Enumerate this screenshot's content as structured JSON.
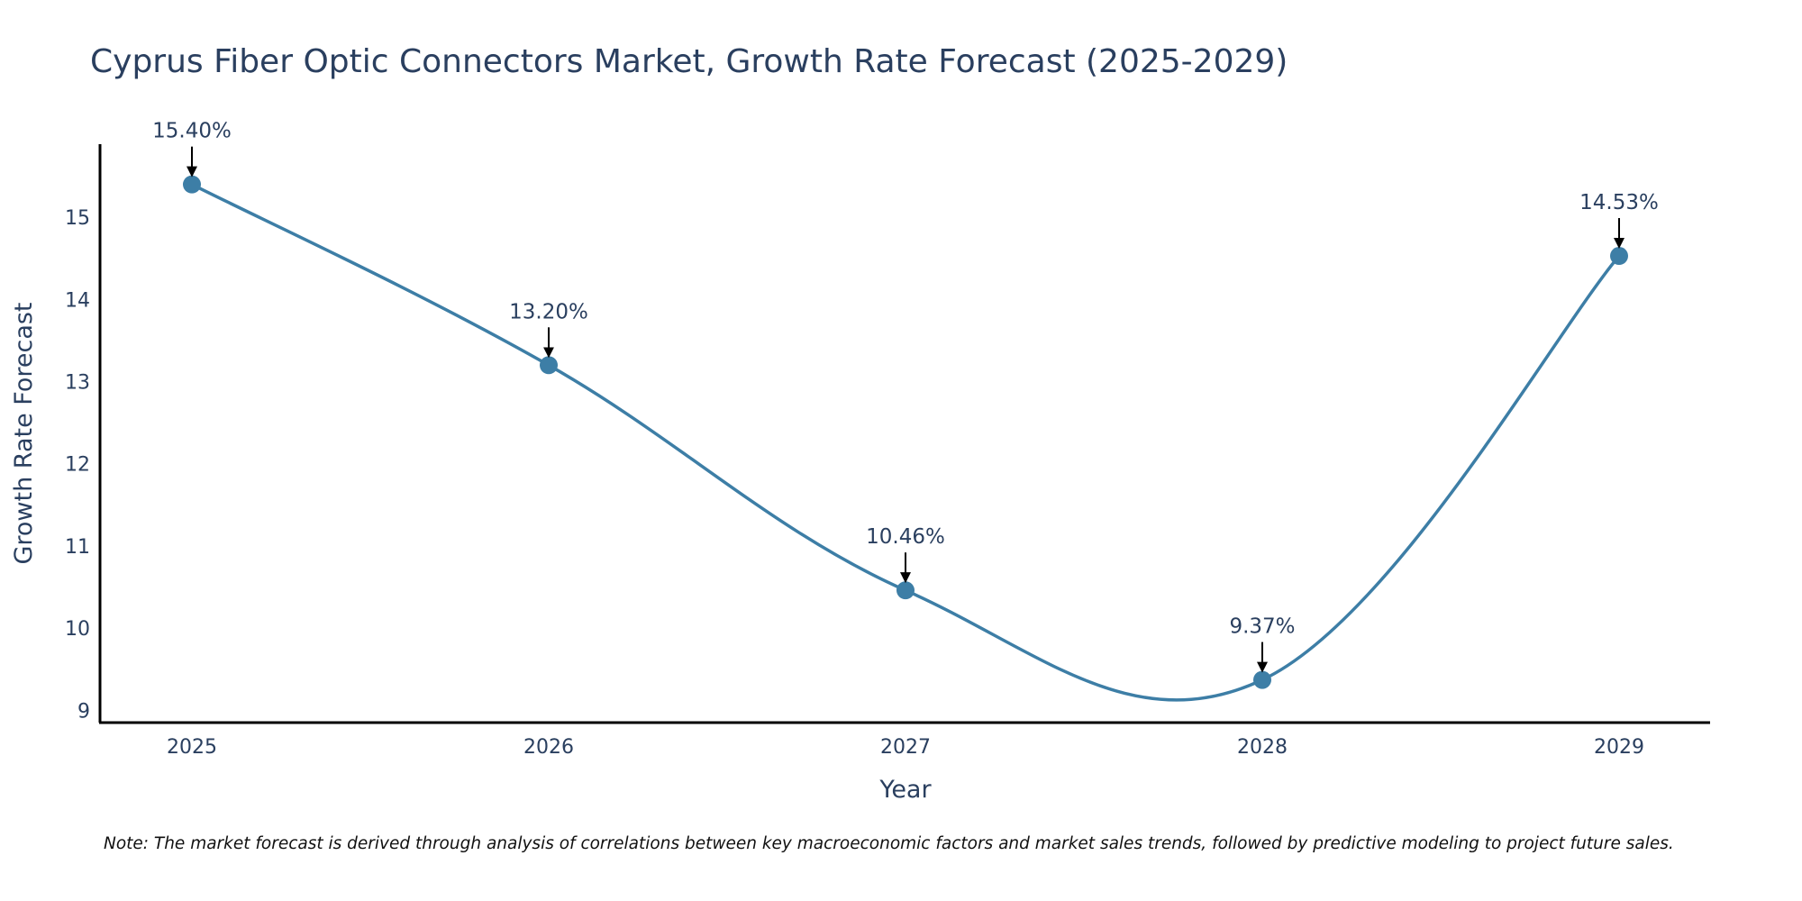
{
  "chart_data": {
    "type": "line",
    "title": "Cyprus Fiber Optic Connectors Market, Growth Rate Forecast (2025-2029)",
    "xlabel": "Year",
    "ylabel": "Growth Rate Forecast",
    "categories": [
      "2025",
      "2026",
      "2027",
      "2028",
      "2029"
    ],
    "values": [
      15.4,
      13.2,
      10.46,
      9.37,
      14.53
    ],
    "data_labels": [
      "15.40%",
      "13.20%",
      "10.46%",
      "9.37%",
      "14.53%"
    ],
    "yticks": [
      9,
      10,
      11,
      12,
      13,
      14,
      15
    ],
    "ylim": [
      8.85,
      15.89
    ],
    "grid": false,
    "legend": "none",
    "line_shape": "spline",
    "colors": {
      "line": "#3d7ea6",
      "marker": "#3d7ea6",
      "text": "#2a3f5f",
      "axis": "#000000"
    }
  },
  "note": "Note: The market forecast is derived through analysis of correlations between key macroeconomic factors and market sales trends, followed by predictive modeling to project future sales."
}
